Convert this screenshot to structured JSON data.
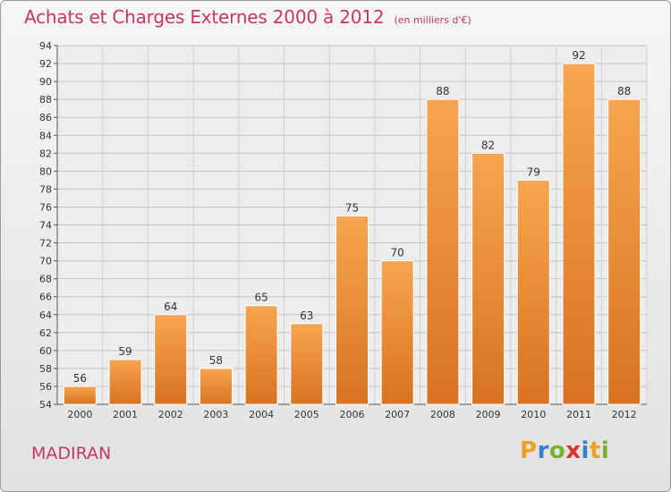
{
  "header": {
    "title": "Achats et Charges Externes 2000 à 2012",
    "subtitle": "(en milliers d'€)"
  },
  "footer": {
    "town": "MADIRAN",
    "logo": {
      "letters": [
        "P",
        "r",
        "o",
        "x",
        "i",
        "t",
        "i"
      ],
      "colors": [
        "#f0a020",
        "#3a7ed0",
        "#78b42a",
        "#e03030",
        "#3a7ed0",
        "#f0a020",
        "#78b42a"
      ]
    }
  },
  "chart_data": {
    "type": "bar",
    "title": "Achats et Charges Externes 2000 à 2012",
    "subtitle": "(en milliers d'€)",
    "categories": [
      "2000",
      "2001",
      "2002",
      "2003",
      "2004",
      "2005",
      "2006",
      "2007",
      "2008",
      "2009",
      "2010",
      "2011",
      "2012"
    ],
    "values": [
      56,
      59,
      64,
      58,
      65,
      63,
      75,
      70,
      88,
      82,
      79,
      92,
      88
    ],
    "ylim": [
      54,
      94
    ],
    "yticks": [
      54,
      56,
      58,
      60,
      62,
      64,
      66,
      68,
      70,
      72,
      74,
      76,
      78,
      80,
      82,
      84,
      86,
      88,
      90,
      92,
      94
    ],
    "grid": true,
    "bar_color": "#f0943a",
    "xlabel": "",
    "ylabel": ""
  }
}
